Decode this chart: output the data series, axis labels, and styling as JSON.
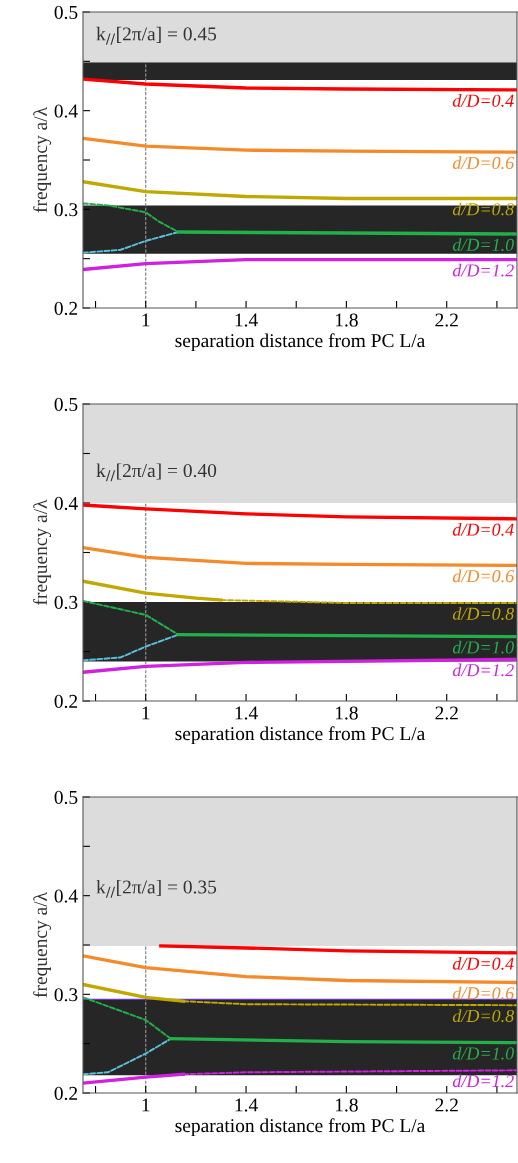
{
  "chart_data": [
    {
      "type": "line",
      "xlabel": "separation distance from PC L/a",
      "ylabel": "frequency a/λ",
      "annotations": [
        "k$_{//}$[2π/a] = 0.45"
      ],
      "xlim": [
        0.75,
        2.48
      ],
      "ylim": [
        0.2,
        0.5
      ],
      "xticks": [
        {
          "value": 0.8,
          "label": null
        },
        1,
        {
          "value": 1.2,
          "label": null
        },
        1.4,
        {
          "value": 1.6,
          "label": null
        },
        1.8,
        {
          "value": 2.0,
          "label": null
        },
        2.2,
        {
          "value": 2.4,
          "label": null
        }
      ],
      "yticks": [
        0.2,
        {
          "value": 0.25,
          "label": null
        },
        0.3,
        {
          "value": 0.35,
          "label": null
        },
        0.4,
        {
          "value": 0.45,
          "label": null
        },
        0.5
      ],
      "bands": [
        {
          "axis": "y",
          "from": 0.449,
          "to": 0.5,
          "color": "#dcdcdc"
        },
        {
          "axis": "y",
          "from": 0.431,
          "to": 0.449,
          "color": "#262626"
        },
        {
          "axis": "y",
          "from": 0.255,
          "to": 0.304,
          "color": "#262626"
        }
      ],
      "ref_lines": [
        {
          "axis": "x",
          "value": 1,
          "color": "#888888",
          "line_style": "dashed"
        }
      ],
      "legend": false,
      "grid": false,
      "series": [
        {
          "name": "d/D=0.4",
          "color": "#ff0000",
          "line_style": "solid",
          "x": [
            0.75,
            1.0,
            1.4,
            1.8,
            2.48
          ],
          "values": [
            0.432,
            0.427,
            0.423,
            0.422,
            0.421
          ]
        },
        {
          "name": "d/D=0.6",
          "color": "#f58a2a",
          "line_style": "solid",
          "x": [
            0.75,
            1.0,
            1.4,
            1.8,
            2.48
          ],
          "values": [
            0.372,
            0.364,
            0.36,
            0.359,
            0.358
          ]
        },
        {
          "name": "d/D=0.8",
          "color": "#c0a800",
          "line_style": "solid",
          "x": [
            0.75,
            1.0,
            1.4,
            1.8,
            2.48
          ],
          "values": [
            0.328,
            0.318,
            0.313,
            0.311,
            0.311
          ]
        },
        {
          "color": "#22b04a",
          "line_style": "dashed",
          "x": [
            0.75,
            0.85,
            1.0,
            1.05,
            1.13
          ],
          "values": [
            0.306,
            0.304,
            0.297,
            0.288,
            0.277
          ]
        },
        {
          "color": "#5bc0de",
          "line_style": "dashed",
          "x": [
            0.75,
            0.9,
            1.0,
            1.13
          ],
          "values": [
            0.256,
            0.259,
            0.268,
            0.277
          ]
        },
        {
          "name": "d/D=1.0",
          "color": "#22b04a",
          "line_style": "solid",
          "x": [
            1.13,
            1.8,
            2.48
          ],
          "values": [
            0.277,
            0.276,
            0.275
          ]
        },
        {
          "name": "d/D=1.2",
          "color": "#d020e0",
          "line_style": "solid",
          "x": [
            0.75,
            1.0,
            1.4,
            2.48
          ],
          "values": [
            0.239,
            0.245,
            0.249,
            0.249
          ]
        }
      ]
    },
    {
      "type": "line",
      "xlabel": "separation distance from PC L/a",
      "ylabel": "frequency a/λ",
      "annotations": [
        "k$_{//}$[2π/a] = 0.40"
      ],
      "xlim": [
        0.75,
        2.48
      ],
      "ylim": [
        0.2,
        0.5
      ],
      "xticks": [
        {
          "value": 0.8,
          "label": null
        },
        1,
        {
          "value": 1.2,
          "label": null
        },
        1.4,
        {
          "value": 1.6,
          "label": null
        },
        1.8,
        {
          "value": 2.0,
          "label": null
        },
        2.2,
        {
          "value": 2.4,
          "label": null
        }
      ],
      "yticks": [
        0.2,
        {
          "value": 0.25,
          "label": null
        },
        0.3,
        {
          "value": 0.35,
          "label": null
        },
        0.4,
        {
          "value": 0.45,
          "label": null
        },
        0.5
      ],
      "bands": [
        {
          "axis": "y",
          "from": 0.4,
          "to": 0.5,
          "color": "#dcdcdc"
        },
        {
          "axis": "y",
          "from": 0.24,
          "to": 0.3,
          "color": "#262626"
        }
      ],
      "ref_lines": [
        {
          "axis": "x",
          "value": 1,
          "color": "#888888",
          "line_style": "dashed"
        }
      ],
      "legend": false,
      "grid": false,
      "series": [
        {
          "name": "d/D=0.4",
          "color": "#ff0000",
          "line_style": "solid",
          "x": [
            0.75,
            1.0,
            1.4,
            1.8,
            2.48
          ],
          "values": [
            0.398,
            0.394,
            0.389,
            0.386,
            0.384
          ]
        },
        {
          "name": "d/D=0.6",
          "color": "#f58a2a",
          "line_style": "solid",
          "x": [
            0.75,
            1.0,
            1.4,
            1.8,
            2.48
          ],
          "values": [
            0.355,
            0.345,
            0.339,
            0.338,
            0.337
          ]
        },
        {
          "color": "#c0a800",
          "line_style": "solid",
          "x": [
            0.75,
            1.0,
            1.2,
            1.3
          ],
          "values": [
            0.321,
            0.309,
            0.304,
            0.302
          ]
        },
        {
          "name": "d/D=0.8",
          "color": "#c0a800",
          "line_style": "dashed",
          "x": [
            1.3,
            1.8,
            2.48
          ],
          "values": [
            0.302,
            0.299,
            0.299
          ]
        },
        {
          "color": "#22b04a",
          "line_style": "dashed",
          "x": [
            0.75,
            1.0,
            1.13
          ],
          "values": [
            0.301,
            0.287,
            0.267
          ]
        },
        {
          "color": "#5bc0de",
          "line_style": "dashed",
          "x": [
            0.75,
            0.9,
            1.0,
            1.13
          ],
          "values": [
            0.241,
            0.244,
            0.255,
            0.267
          ]
        },
        {
          "name": "d/D=1.0",
          "color": "#22b04a",
          "line_style": "solid",
          "x": [
            1.13,
            1.8,
            2.48
          ],
          "values": [
            0.267,
            0.266,
            0.265
          ]
        },
        {
          "name": "d/D=1.2",
          "color": "#d020e0",
          "line_style": "solid",
          "x": [
            0.75,
            1.0,
            1.4,
            2.48
          ],
          "values": [
            0.229,
            0.235,
            0.239,
            0.242
          ]
        }
      ]
    },
    {
      "type": "line",
      "xlabel": "separation distance from PC L/a",
      "ylabel": "frequency a/λ",
      "annotations": [
        "k$_{//}$[2π/a] = 0.35"
      ],
      "xlim": [
        0.75,
        2.48
      ],
      "ylim": [
        0.2,
        0.5
      ],
      "xticks": [
        {
          "value": 0.8,
          "label": null
        },
        1,
        {
          "value": 1.2,
          "label": null
        },
        1.4,
        {
          "value": 1.6,
          "label": null
        },
        1.8,
        {
          "value": 2.0,
          "label": null
        },
        2.2,
        {
          "value": 2.4,
          "label": null
        }
      ],
      "yticks": [
        0.2,
        {
          "value": 0.25,
          "label": null
        },
        0.3,
        {
          "value": 0.35,
          "label": null
        },
        0.4,
        {
          "value": 0.45,
          "label": null
        },
        0.5
      ],
      "bands": [
        {
          "axis": "y",
          "from": 0.349,
          "to": 0.5,
          "color": "#dcdcdc"
        },
        {
          "axis": "y",
          "from": 0.218,
          "to": 0.295,
          "color": "#262626"
        }
      ],
      "ref_lines": [
        {
          "axis": "x",
          "value": 1,
          "color": "#888888",
          "line_style": "dashed"
        },
        {
          "axis": "y",
          "value": 0.295,
          "color": "#6633cc",
          "line_style": "solid"
        }
      ],
      "legend": false,
      "grid": false,
      "series": [
        {
          "name": "d/D=0.4",
          "color": "#ff0000",
          "line_style": "solid",
          "x": [
            1.06,
            1.4,
            1.8,
            2.48
          ],
          "values": [
            0.349,
            0.347,
            0.344,
            0.342
          ]
        },
        {
          "name": "d/D=0.6",
          "color": "#f58a2a",
          "line_style": "solid",
          "x": [
            0.75,
            1.0,
            1.4,
            1.8,
            2.48
          ],
          "values": [
            0.339,
            0.327,
            0.318,
            0.314,
            0.312
          ]
        },
        {
          "color": "#c0a800",
          "line_style": "solid",
          "x": [
            0.75,
            1.0,
            1.15
          ],
          "values": [
            0.31,
            0.297,
            0.293
          ]
        },
        {
          "name": "d/D=0.8",
          "color": "#c0a800",
          "line_style": "dashed",
          "x": [
            1.15,
            1.4,
            2.48
          ],
          "values": [
            0.293,
            0.29,
            0.289
          ]
        },
        {
          "color": "#22b04a",
          "line_style": "dashed",
          "x": [
            0.75,
            1.0,
            1.1
          ],
          "values": [
            0.297,
            0.274,
            0.255
          ]
        },
        {
          "color": "#5bc0de",
          "line_style": "dashed",
          "x": [
            0.75,
            0.85,
            1.0,
            1.1
          ],
          "values": [
            0.219,
            0.221,
            0.24,
            0.255
          ]
        },
        {
          "name": "d/D=1.0",
          "color": "#22b04a",
          "line_style": "solid",
          "x": [
            1.1,
            1.8,
            2.48
          ],
          "values": [
            0.255,
            0.252,
            0.251
          ]
        },
        {
          "color": "#d020e0",
          "line_style": "solid",
          "x": [
            0.75,
            1.0,
            1.15
          ],
          "values": [
            0.21,
            0.216,
            0.219
          ]
        },
        {
          "name": "d/D=1.2",
          "color": "#d020e0",
          "line_style": "dashed",
          "x": [
            1.15,
            1.4,
            2.48
          ],
          "values": [
            0.219,
            0.221,
            0.223
          ]
        }
      ]
    }
  ]
}
